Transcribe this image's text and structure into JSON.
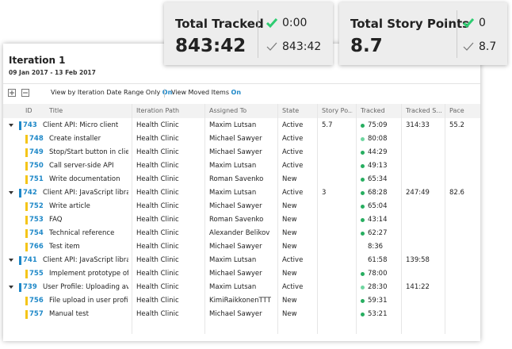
{
  "cards": [
    {
      "title": "Total Tracked",
      "current": "0:00",
      "total": "843:42",
      "tracked": "843:42"
    },
    {
      "title": "Total Story Points",
      "current": "0",
      "total": "8.7",
      "tracked": "8.7"
    }
  ],
  "iteration": {
    "title": "Iteration 1",
    "dates": "09 Jan 2017 - 13 Feb 2017"
  },
  "toolbar": {
    "option1": "View by Iteration Date Range Only",
    "option1_state": "On",
    "option2": "View Moved Items",
    "option2_state": "On"
  },
  "table": {
    "columns": [
      "ID",
      "Title",
      "Iteration Path",
      "Assigned To",
      "State",
      "Story Po...",
      "Tracked",
      "Tracked S...",
      "Pace"
    ],
    "rows": [
      {
        "id": "743",
        "title": "Client API: Micro client",
        "path": "Health Clinic",
        "assigned": "Maxim Lutsan",
        "state": "Active",
        "points": "5.7",
        "tracked": "75:09",
        "dot": "#27ae60",
        "tracked_s": "314:33",
        "pace": "55.2",
        "children": [
          {
            "id": "748",
            "title": "Create installer",
            "path": "Health Clinic",
            "assigned": "Michael Sawyer",
            "state": "Active",
            "tracked": "80:08",
            "dot": "#6fd6a0"
          },
          {
            "id": "749",
            "title": "Stop/Start button in client",
            "path": "Health Clinic",
            "assigned": "Michael Sawyer",
            "state": "Active",
            "tracked": "44:29",
            "dot": "#27ae60"
          },
          {
            "id": "750",
            "title": "Call server-side API",
            "path": "Health Clinic",
            "assigned": "Maxim Lutsan",
            "state": "Active",
            "tracked": "49:13",
            "dot": "#27ae60"
          },
          {
            "id": "751",
            "title": "Write documentation",
            "path": "Health Clinic",
            "assigned": "Roman Savenko",
            "state": "New",
            "tracked": "65:34",
            "dot": "#27ae60"
          }
        ]
      },
      {
        "id": "742",
        "title": "Client API: JavaScript library ...",
        "path": "Health Clinic",
        "assigned": "Maxim Lutsan",
        "state": "Active",
        "points": "3",
        "tracked": "68:28",
        "dot": "#27ae60",
        "tracked_s": "247:49",
        "pace": "82.6",
        "children": [
          {
            "id": "752",
            "title": "Write article",
            "path": "Health Clinic",
            "assigned": "Michael Sawyer",
            "state": "New",
            "tracked": "65:04",
            "dot": "#27ae60"
          },
          {
            "id": "753",
            "title": "FAQ",
            "path": "Health Clinic",
            "assigned": "Roman Savenko",
            "state": "New",
            "tracked": "43:14",
            "dot": "#27ae60"
          },
          {
            "id": "754",
            "title": "Technical reference",
            "path": "Health Clinic",
            "assigned": "Alexander Belikov",
            "state": "New",
            "tracked": "62:27",
            "dot": "#27ae60"
          },
          {
            "id": "766",
            "title": "Test item",
            "path": "Health Clinic",
            "assigned": "Michael Sawyer",
            "state": "New",
            "tracked": "8:36"
          }
        ]
      },
      {
        "id": "741",
        "title": "Client API: JavaScript library ...",
        "path": "Health Clinic",
        "assigned": "Maxim Lutsan",
        "state": "Active",
        "tracked": "61:58",
        "tracked_s": "139:58",
        "children": [
          {
            "id": "755",
            "title": "Implement prototype of c",
            "path": "Health Clinic",
            "assigned": "Michael Sawyer",
            "state": "New",
            "tracked": "78:00",
            "dot": "#27ae60"
          }
        ]
      },
      {
        "id": "739",
        "title": "User Profile: Uploading avat",
        "path": "Health Clinic",
        "assigned": "Maxim Lutsan",
        "state": "Active",
        "tracked": "28:30",
        "dot": "#6fd6a0",
        "tracked_s": "141:22",
        "children": [
          {
            "id": "756",
            "title": "File upload in user profile",
            "path": "Health Clinic",
            "assigned": "KimiRaikkonenTTT",
            "state": "New",
            "tracked": "59:31",
            "dot": "#27ae60"
          },
          {
            "id": "757",
            "title": "Manual test",
            "path": "Health Clinic",
            "assigned": "Michael Sawyer",
            "state": "New",
            "tracked": "53:21",
            "dot": "#27ae60"
          }
        ]
      }
    ]
  }
}
